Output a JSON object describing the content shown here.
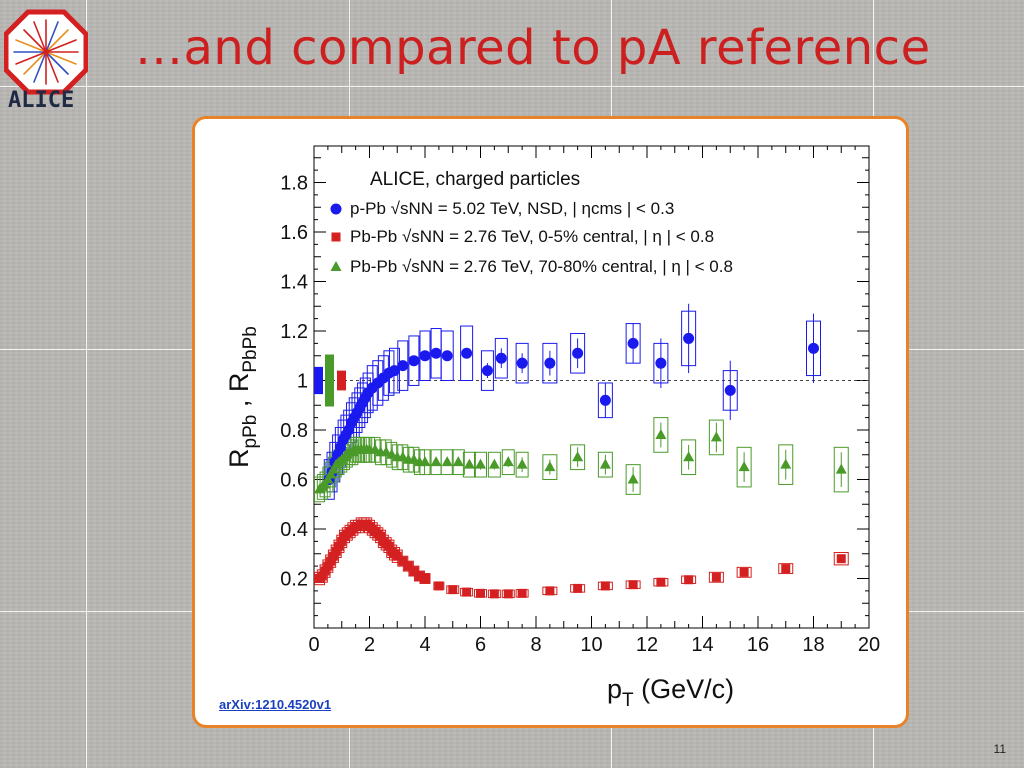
{
  "slide": {
    "title": "…and compared to pA reference",
    "logo_text": "ALICE",
    "source": "arXiv:1210.4520v1",
    "page_number": "11"
  },
  "colors": {
    "title": "#cc1f1f",
    "panel_border": "#e8832a",
    "ppb": "#1a1aee",
    "pbpb_central": "#d42020",
    "pbpb_peripheral": "#4a9a2a"
  },
  "chart_data": {
    "type": "scatter",
    "title": "ALICE, charged particles",
    "xlabel": "p_T (GeV/c)",
    "ylabel": "R_pPb , R_PbPb",
    "xlim": [
      0,
      20
    ],
    "ylim": [
      0,
      1.9
    ],
    "xticks": [
      "0",
      "2",
      "4",
      "6",
      "8",
      "10",
      "12",
      "14",
      "16",
      "18",
      "20"
    ],
    "yticks": [
      "0.2",
      "0.4",
      "0.6",
      "0.8",
      "1",
      "1.2",
      "1.4",
      "1.6",
      "1.8"
    ],
    "reference_line": 1,
    "legend_placement": "top-left",
    "normalization_boxes": [
      {
        "series": "p-Pb",
        "half_height": 0.055
      },
      {
        "series": "Pb-Pb 70-80%",
        "half_height": 0.105
      },
      {
        "series": "Pb-Pb 0-5%",
        "half_height": 0.04
      }
    ],
    "series": [
      {
        "name": "p-Pb",
        "legend_text": "p-Pb  √sNN = 5.02 TeV,  NSD, | ηcms | < 0.3",
        "marker": "circle",
        "x": [
          0.55,
          0.65,
          0.75,
          0.85,
          0.95,
          1.05,
          1.15,
          1.25,
          1.35,
          1.45,
          1.55,
          1.65,
          1.75,
          1.85,
          1.95,
          2.1,
          2.3,
          2.5,
          2.7,
          2.9,
          3.2,
          3.6,
          4.0,
          4.4,
          4.8,
          5.5,
          6.25,
          6.75,
          7.5,
          8.5,
          9.5,
          10.5,
          11.5,
          12.5,
          13.5,
          15.0,
          18.0
        ],
        "y": [
          0.6,
          0.63,
          0.67,
          0.7,
          0.73,
          0.76,
          0.78,
          0.8,
          0.83,
          0.85,
          0.87,
          0.89,
          0.91,
          0.93,
          0.95,
          0.97,
          0.99,
          1.01,
          1.03,
          1.04,
          1.06,
          1.08,
          1.1,
          1.11,
          1.1,
          1.11,
          1.04,
          1.09,
          1.07,
          1.07,
          1.11,
          0.92,
          1.15,
          1.07,
          1.17,
          0.96,
          1.13
        ],
        "err": [
          0.02,
          0.02,
          0.02,
          0.02,
          0.02,
          0.02,
          0.02,
          0.02,
          0.02,
          0.02,
          0.02,
          0.02,
          0.02,
          0.02,
          0.02,
          0.02,
          0.02,
          0.02,
          0.02,
          0.02,
          0.02,
          0.02,
          0.02,
          0.02,
          0.02,
          0.02,
          0.03,
          0.04,
          0.04,
          0.05,
          0.06,
          0.07,
          0.08,
          0.1,
          0.14,
          0.12,
          0.14
        ],
        "sys": [
          0.08,
          0.08,
          0.08,
          0.08,
          0.08,
          0.08,
          0.08,
          0.08,
          0.08,
          0.08,
          0.08,
          0.08,
          0.08,
          0.08,
          0.08,
          0.09,
          0.09,
          0.09,
          0.09,
          0.09,
          0.1,
          0.1,
          0.1,
          0.1,
          0.1,
          0.11,
          0.08,
          0.08,
          0.08,
          0.08,
          0.08,
          0.07,
          0.08,
          0.08,
          0.11,
          0.08,
          0.11
        ]
      },
      {
        "name": "Pb-Pb 0-5%",
        "legend_text": "Pb-Pb  √sNN = 2.76 TeV,  0-5% central, | η | < 0.8",
        "marker": "square",
        "x": [
          0.2,
          0.3,
          0.4,
          0.5,
          0.6,
          0.7,
          0.8,
          0.9,
          1.0,
          1.1,
          1.2,
          1.3,
          1.4,
          1.5,
          1.6,
          1.7,
          1.8,
          1.9,
          2.0,
          2.1,
          2.2,
          2.3,
          2.4,
          2.5,
          2.6,
          2.7,
          2.8,
          2.9,
          3.0,
          3.2,
          3.4,
          3.6,
          3.8,
          4.0,
          4.5,
          5.0,
          5.5,
          6.0,
          6.5,
          7.0,
          7.5,
          8.5,
          9.5,
          10.5,
          11.5,
          12.5,
          13.5,
          14.5,
          15.5,
          17.0,
          19.0
        ],
        "y": [
          0.2,
          0.21,
          0.23,
          0.25,
          0.27,
          0.29,
          0.31,
          0.33,
          0.35,
          0.37,
          0.38,
          0.39,
          0.4,
          0.41,
          0.41,
          0.42,
          0.42,
          0.42,
          0.41,
          0.4,
          0.39,
          0.38,
          0.37,
          0.35,
          0.34,
          0.33,
          0.31,
          0.3,
          0.29,
          0.27,
          0.25,
          0.23,
          0.21,
          0.2,
          0.17,
          0.155,
          0.145,
          0.14,
          0.138,
          0.138,
          0.14,
          0.15,
          0.16,
          0.17,
          0.175,
          0.185,
          0.195,
          0.205,
          0.225,
          0.24,
          0.28
        ],
        "sys": [
          0.025,
          0.025,
          0.025,
          0.025,
          0.025,
          0.025,
          0.025,
          0.025,
          0.025,
          0.025,
          0.025,
          0.025,
          0.025,
          0.025,
          0.025,
          0.025,
          0.025,
          0.025,
          0.025,
          0.025,
          0.025,
          0.025,
          0.025,
          0.025,
          0.025,
          0.025,
          0.025,
          0.025,
          0.025,
          0.02,
          0.02,
          0.02,
          0.02,
          0.02,
          0.015,
          0.015,
          0.015,
          0.015,
          0.015,
          0.015,
          0.015,
          0.015,
          0.015,
          0.015,
          0.015,
          0.015,
          0.015,
          0.02,
          0.02,
          0.02,
          0.025
        ]
      },
      {
        "name": "Pb-Pb 70-80%",
        "legend_text": "Pb-Pb  √sNN = 2.76 TeV,  70-80% central, | η | < 0.8",
        "marker": "triangle",
        "x": [
          0.2,
          0.3,
          0.4,
          0.5,
          0.6,
          0.7,
          0.8,
          0.9,
          1.0,
          1.1,
          1.2,
          1.3,
          1.4,
          1.5,
          1.6,
          1.7,
          1.8,
          1.9,
          2.0,
          2.2,
          2.4,
          2.6,
          2.8,
          3.0,
          3.2,
          3.4,
          3.6,
          3.8,
          4.0,
          4.4,
          4.8,
          5.2,
          5.6,
          6.0,
          6.5,
          7.0,
          7.5,
          8.5,
          9.5,
          10.5,
          11.5,
          12.5,
          13.5,
          14.5,
          15.5,
          17.0,
          19.0
        ],
        "y": [
          0.56,
          0.57,
          0.58,
          0.6,
          0.62,
          0.64,
          0.66,
          0.67,
          0.68,
          0.69,
          0.7,
          0.71,
          0.71,
          0.72,
          0.72,
          0.72,
          0.72,
          0.72,
          0.72,
          0.72,
          0.71,
          0.71,
          0.7,
          0.69,
          0.69,
          0.68,
          0.68,
          0.67,
          0.67,
          0.67,
          0.67,
          0.67,
          0.66,
          0.66,
          0.66,
          0.67,
          0.66,
          0.65,
          0.69,
          0.66,
          0.6,
          0.78,
          0.69,
          0.77,
          0.65,
          0.66,
          0.64
        ],
        "err": [
          0.01,
          0.01,
          0.01,
          0.01,
          0.01,
          0.01,
          0.01,
          0.01,
          0.01,
          0.01,
          0.01,
          0.01,
          0.01,
          0.01,
          0.01,
          0.01,
          0.01,
          0.01,
          0.01,
          0.01,
          0.01,
          0.01,
          0.01,
          0.01,
          0.01,
          0.01,
          0.01,
          0.01,
          0.01,
          0.01,
          0.01,
          0.01,
          0.01,
          0.02,
          0.02,
          0.02,
          0.03,
          0.03,
          0.04,
          0.04,
          0.05,
          0.05,
          0.05,
          0.06,
          0.06,
          0.06,
          0.07
        ],
        "sys": [
          0.05,
          0.05,
          0.05,
          0.05,
          0.05,
          0.05,
          0.05,
          0.05,
          0.05,
          0.05,
          0.05,
          0.05,
          0.05,
          0.05,
          0.05,
          0.05,
          0.05,
          0.05,
          0.05,
          0.05,
          0.05,
          0.05,
          0.05,
          0.05,
          0.05,
          0.05,
          0.05,
          0.05,
          0.05,
          0.05,
          0.05,
          0.05,
          0.05,
          0.05,
          0.05,
          0.05,
          0.05,
          0.05,
          0.05,
          0.05,
          0.06,
          0.07,
          0.07,
          0.07,
          0.08,
          0.08,
          0.09
        ]
      }
    ]
  }
}
